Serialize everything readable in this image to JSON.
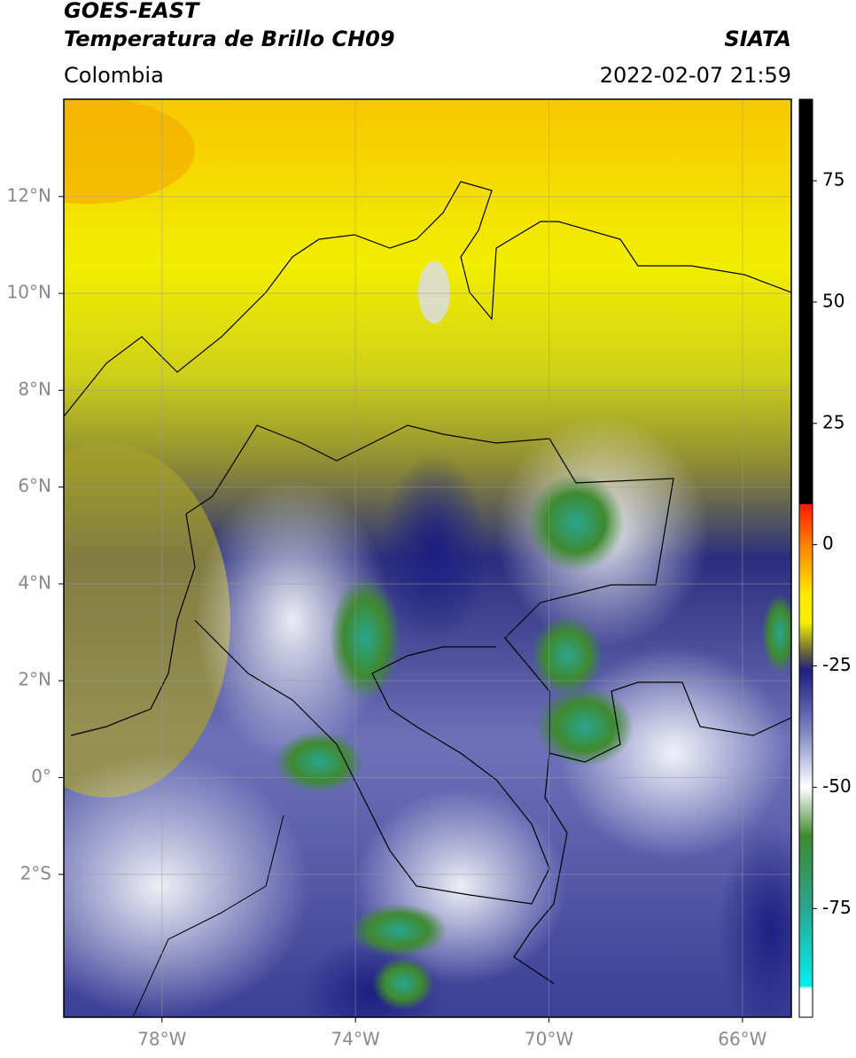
{
  "header": {
    "title": "GOES-EAST",
    "subtitle": "Temperatura de Brillo CH09",
    "source": "SIATA",
    "region": "Colombia",
    "timestamp": "2022-02-07 21:59"
  },
  "map": {
    "xlim": [
      -80.03,
      -64.99
    ],
    "ylim": [
      -4.95,
      14.01
    ],
    "xticks": [
      {
        "value": -78,
        "label": "78°W"
      },
      {
        "value": -74,
        "label": "74°W"
      },
      {
        "value": -70,
        "label": "70°W"
      },
      {
        "value": -66,
        "label": "66°W"
      }
    ],
    "yticks": [
      {
        "value": 12,
        "label": "12°N"
      },
      {
        "value": 10,
        "label": "10°N"
      },
      {
        "value": 8,
        "label": "8°N"
      },
      {
        "value": 6,
        "label": "6°N"
      },
      {
        "value": 4,
        "label": "4°N"
      },
      {
        "value": 2,
        "label": "2°N"
      },
      {
        "value": 0,
        "label": "0°"
      },
      {
        "value": -2,
        "label": "2°S"
      }
    ],
    "grid": true
  },
  "colorbar": {
    "lim": [
      -97.4,
      91.8
    ],
    "ticks": [
      75,
      50,
      25,
      0,
      -25,
      -50,
      -75
    ],
    "stops": [
      {
        "value": 91.8,
        "color": "#000000"
      },
      {
        "value": 8.4,
        "color": "#000000"
      },
      {
        "value": 8.3,
        "color": "#ff1a00"
      },
      {
        "value": 0,
        "color": "#ff8000"
      },
      {
        "value": -10,
        "color": "#ffe800"
      },
      {
        "value": -16,
        "color": "#f5f000"
      },
      {
        "value": -22,
        "color": "#6b6a3a"
      },
      {
        "value": -26,
        "color": "#1c1f80"
      },
      {
        "value": -38,
        "color": "#7a80c0"
      },
      {
        "value": -50,
        "color": "#ffffff"
      },
      {
        "value": -60,
        "color": "#3e8a30"
      },
      {
        "value": -75,
        "color": "#2aa690"
      },
      {
        "value": -91,
        "color": "#00f0f0"
      },
      {
        "value": -91.5,
        "color": "#ffffff"
      },
      {
        "value": -97.4,
        "color": "#ffffff"
      }
    ]
  }
}
